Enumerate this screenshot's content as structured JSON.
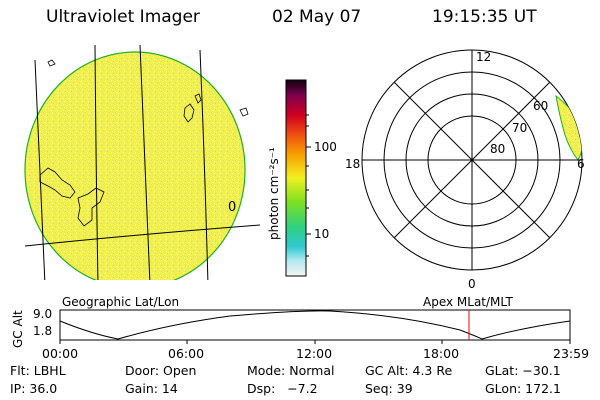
{
  "header": {
    "instrument": "Ultraviolet Imager",
    "date": "02 May 07",
    "time": "19:15:35 UT"
  },
  "colorbar": {
    "unit_label": "photon cm⁻²s⁻¹",
    "tick_labels": [
      "100",
      "10"
    ]
  },
  "left_map": {
    "caption": "Geographic Lat/Lon",
    "meridian_label": "0"
  },
  "right_map": {
    "caption": "Apex MLat/MLT",
    "mlt_labels": [
      "12",
      "18",
      "6",
      "0"
    ],
    "lat_labels": [
      "60",
      "70",
      "80"
    ]
  },
  "altitude_plot": {
    "ylabel": "GC Alt",
    "y_ticks": [
      "9.0",
      "1.8"
    ],
    "x_ticks": [
      "00:00",
      "06:00",
      "12:00",
      "18:00",
      "23:59"
    ],
    "current_time_marker": "19:15"
  },
  "status": {
    "flt": "Flt: LBHL",
    "door": "Door: Open",
    "mode": "Mode: Normal",
    "gc_alt": "GC Alt: 4.3 Re",
    "glat": "GLat: −30.1",
    "ip": "IP: 36.0",
    "gain": "Gain: 14",
    "dsp": "Dsp:   −7.2",
    "seq": "Seq: 39",
    "glon": "GLon: 172.1"
  },
  "colors": {
    "image_fill": "#f0f050",
    "image_edge": "#20b020",
    "marker": "#ff0000"
  }
}
